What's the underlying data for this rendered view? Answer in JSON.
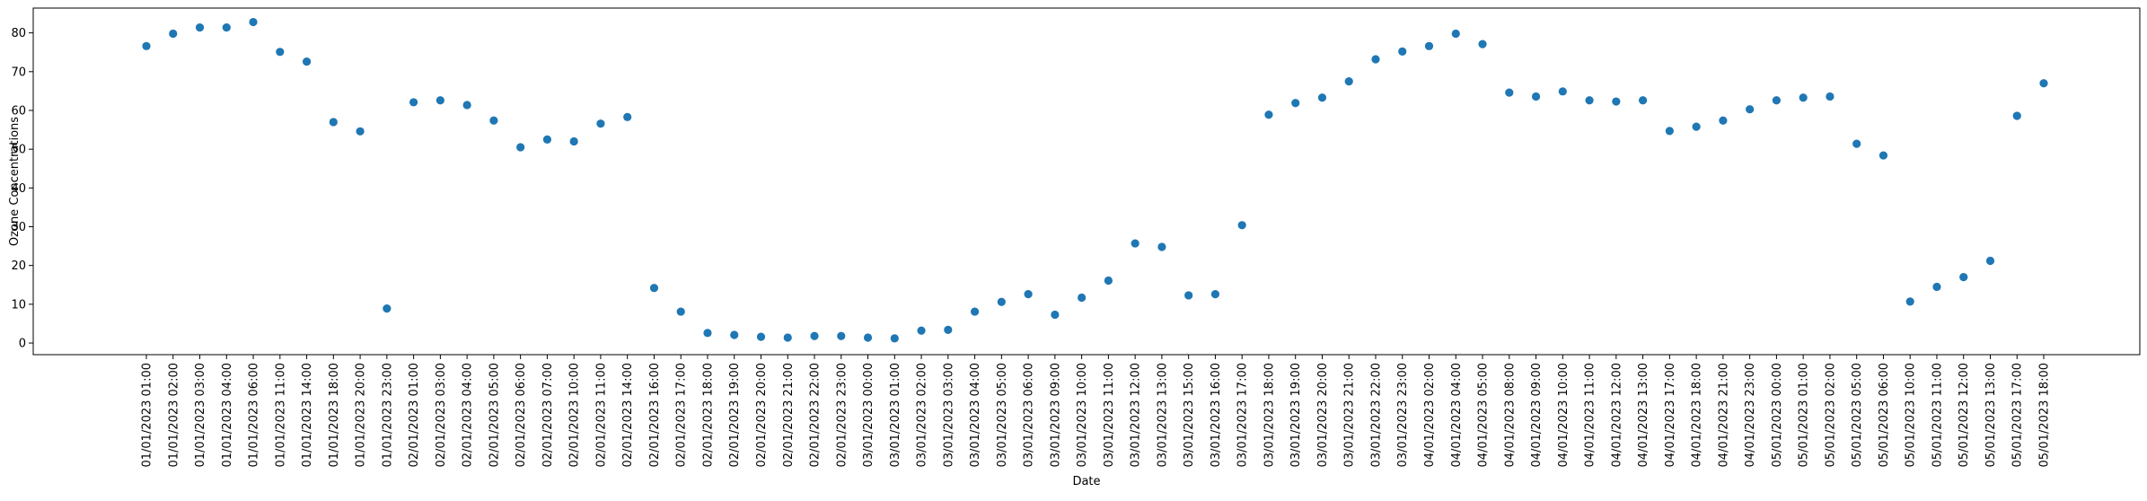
{
  "chart_data": {
    "type": "scatter",
    "title": "",
    "xlabel": "Date",
    "ylabel": "Ozone Concentrations",
    "ylim": [
      -3,
      86.4
    ],
    "yticks": [
      0,
      10,
      20,
      30,
      40,
      50,
      60,
      70,
      80
    ],
    "grid": false,
    "legend": "none",
    "marker_color": "#1f77b4",
    "x": [
      "01/01/2023 01:00",
      "01/01/2023 02:00",
      "01/01/2023 03:00",
      "01/01/2023 04:00",
      "01/01/2023 06:00",
      "01/01/2023 11:00",
      "01/01/2023 14:00",
      "01/01/2023 18:00",
      "01/01/2023 20:00",
      "01/01/2023 23:00",
      "02/01/2023 01:00",
      "02/01/2023 03:00",
      "02/01/2023 04:00",
      "02/01/2023 05:00",
      "02/01/2023 06:00",
      "02/01/2023 07:00",
      "02/01/2023 10:00",
      "02/01/2023 11:00",
      "02/01/2023 14:00",
      "02/01/2023 16:00",
      "02/01/2023 17:00",
      "02/01/2023 18:00",
      "02/01/2023 19:00",
      "02/01/2023 20:00",
      "02/01/2023 21:00",
      "02/01/2023 22:00",
      "02/01/2023 23:00",
      "03/01/2023 00:00",
      "03/01/2023 01:00",
      "03/01/2023 02:00",
      "03/01/2023 03:00",
      "03/01/2023 04:00",
      "03/01/2023 05:00",
      "03/01/2023 06:00",
      "03/01/2023 09:00",
      "03/01/2023 10:00",
      "03/01/2023 11:00",
      "03/01/2023 12:00",
      "03/01/2023 13:00",
      "03/01/2023 15:00",
      "03/01/2023 16:00",
      "03/01/2023 17:00",
      "03/01/2023 18:00",
      "03/01/2023 19:00",
      "03/01/2023 20:00",
      "03/01/2023 21:00",
      "03/01/2023 22:00",
      "03/01/2023 23:00",
      "04/01/2023 02:00",
      "04/01/2023 04:00",
      "04/01/2023 05:00",
      "04/01/2023 08:00",
      "04/01/2023 09:00",
      "04/01/2023 10:00",
      "04/01/2023 11:00",
      "04/01/2023 12:00",
      "04/01/2023 13:00",
      "04/01/2023 17:00",
      "04/01/2023 18:00",
      "04/01/2023 21:00",
      "04/01/2023 23:00",
      "05/01/2023 00:00",
      "05/01/2023 01:00",
      "05/01/2023 02:00",
      "05/01/2023 05:00",
      "05/01/2023 06:00",
      "05/01/2023 10:00",
      "05/01/2023 11:00",
      "05/01/2023 12:00",
      "05/01/2023 13:00",
      "05/01/2023 17:00",
      "05/01/2023 18:00"
    ],
    "y": [
      76.6,
      79.8,
      81.4,
      81.4,
      82.8,
      75.1,
      72.6,
      57.0,
      54.6,
      8.9,
      62.1,
      62.6,
      61.4,
      57.4,
      50.5,
      52.5,
      52.0,
      56.6,
      58.3,
      14.2,
      8.1,
      2.6,
      2.1,
      1.6,
      1.4,
      1.8,
      1.8,
      1.4,
      1.2,
      3.2,
      3.4,
      8.1,
      10.6,
      12.6,
      7.3,
      11.7,
      16.1,
      25.7,
      24.8,
      12.3,
      12.6,
      30.4,
      58.9,
      61.9,
      63.3,
      67.5,
      73.2,
      75.2,
      76.6,
      79.8,
      77.1,
      64.6,
      63.6,
      64.9,
      62.6,
      62.3,
      62.6,
      54.7,
      55.8,
      57.4,
      60.3,
      62.6,
      63.3,
      63.6,
      51.4,
      48.4,
      10.7,
      14.5,
      17.0,
      21.2,
      58.6,
      67.0
    ]
  }
}
